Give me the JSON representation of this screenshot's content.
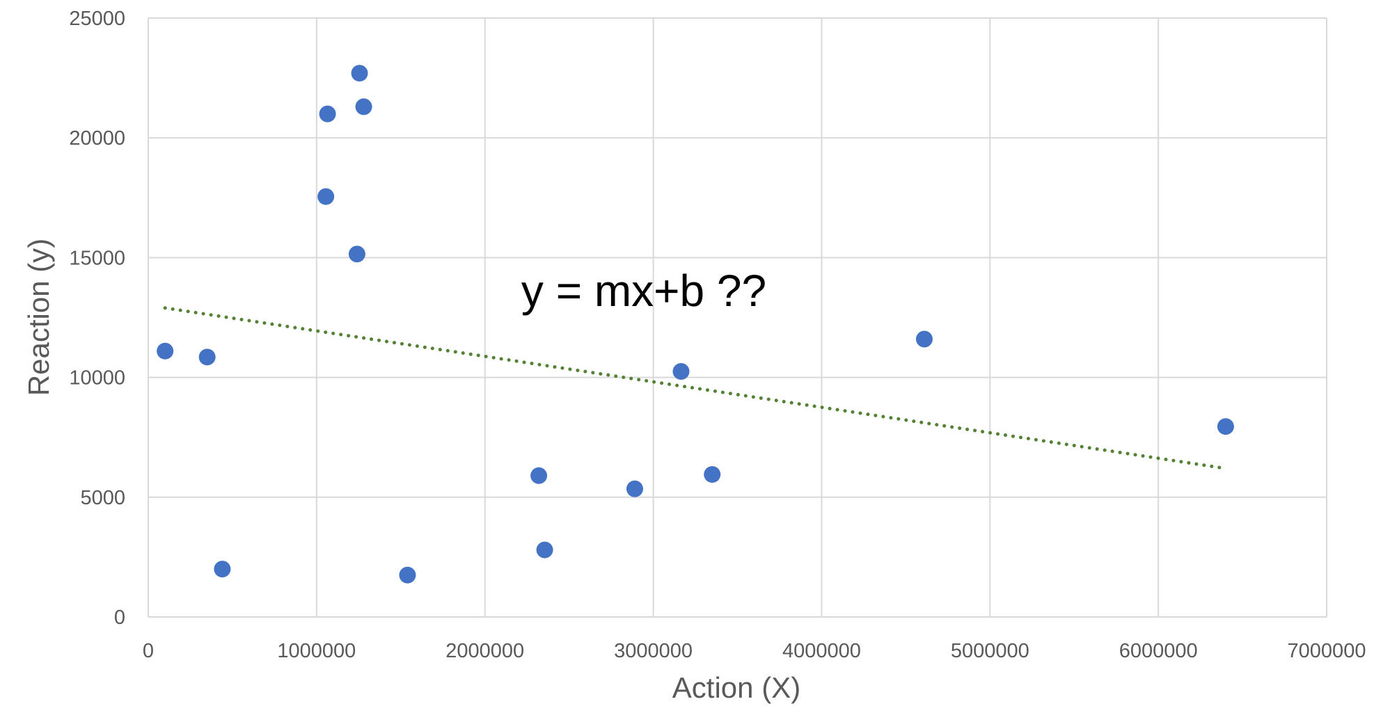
{
  "chart_data": {
    "type": "scatter",
    "title": "",
    "xlabel": "Action (X)",
    "ylabel": "Reaction (y)",
    "xlim": [
      0,
      7000000
    ],
    "ylim": [
      0,
      25000
    ],
    "x_ticks": [
      "0",
      "1000000",
      "2000000",
      "3000000",
      "4000000",
      "5000000",
      "6000000",
      "7000000"
    ],
    "y_ticks": [
      "0",
      "5000",
      "10000",
      "15000",
      "20000",
      "25000"
    ],
    "grid": true,
    "annotation": "y = mx+b ??",
    "point_color": "#4472c4",
    "trendline_color": "#548235",
    "series": [
      {
        "points": [
          {
            "x": 100000,
            "y": 11100
          },
          {
            "x": 350000,
            "y": 10850
          },
          {
            "x": 440000,
            "y": 2000
          },
          {
            "x": 1055000,
            "y": 17550
          },
          {
            "x": 1065000,
            "y": 21000
          },
          {
            "x": 1240000,
            "y": 15150
          },
          {
            "x": 1255000,
            "y": 22700
          },
          {
            "x": 1280000,
            "y": 21300
          },
          {
            "x": 1540000,
            "y": 1750
          },
          {
            "x": 2320000,
            "y": 5900
          },
          {
            "x": 2355000,
            "y": 2800
          },
          {
            "x": 2890000,
            "y": 5350
          },
          {
            "x": 3165000,
            "y": 10250
          },
          {
            "x": 3350000,
            "y": 5950
          },
          {
            "x": 4610000,
            "y": 11600
          },
          {
            "x": 6400000,
            "y": 7950
          }
        ]
      }
    ],
    "trendline": {
      "style": "dotted",
      "x": [
        100000,
        6400000
      ],
      "y": [
        12900,
        6200
      ]
    }
  }
}
